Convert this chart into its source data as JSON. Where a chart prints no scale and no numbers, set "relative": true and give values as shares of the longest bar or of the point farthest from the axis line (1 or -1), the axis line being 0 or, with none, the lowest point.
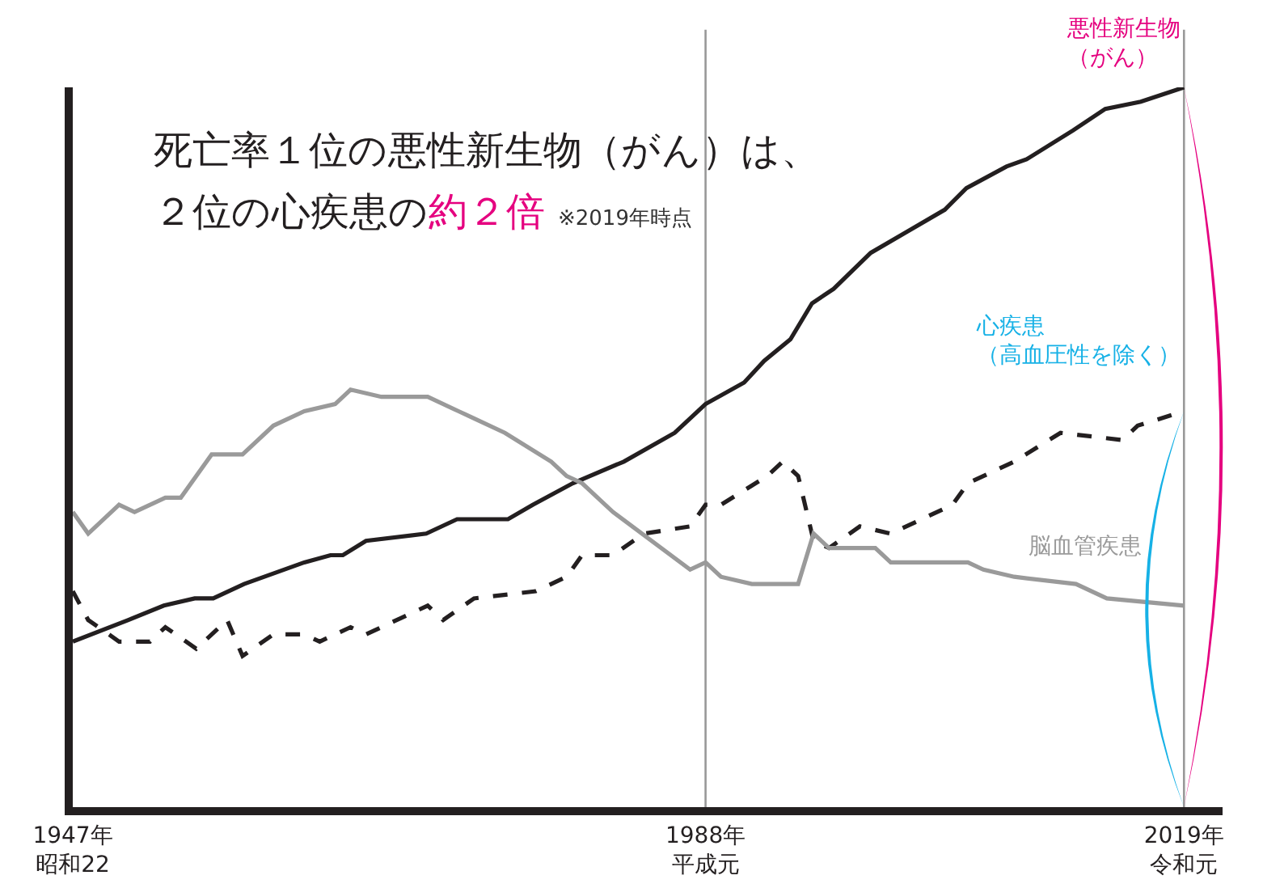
{
  "chart_data": {
    "type": "line",
    "title": "死亡率１位の悪性新生物（がん）は、",
    "subtitle": "２位の心疾患の",
    "annotations": [
      "約２倍",
      "※2019年時点"
    ],
    "relative": true,
    "tick_labels": "x",
    "legend": false,
    "grid": false,
    "marker": "none",
    "xlim": [
      1947,
      2021.5
    ],
    "xticks": [
      {
        "value": 1947,
        "label": "1947年昭和22"
      },
      {
        "value": 1988,
        "label": "1988年平成元"
      },
      {
        "value": 2019,
        "label": "2019年令和元"
      }
    ],
    "ref_lines": [
      {
        "axis": "x",
        "value": 1988,
        "color": "#999999"
      },
      {
        "axis": "x",
        "value": 2019,
        "color": "#999999"
      }
    ],
    "series": [
      {
        "name": "悪性新生物（がん）",
        "color": "#231f20",
        "line_style": "solid",
        "x": [
          1947,
          1950.6,
          1952.9,
          1954.9,
          1956.1,
          1958.1,
          1962,
          1963.7,
          1964.5,
          1966,
          1969.9,
          1971.9,
          1975.2,
          1976.8,
          1979.4,
          1982.7,
          1986,
          1988,
          1990.5,
          1991.8,
          1993.5,
          1994.9,
          1996.3,
          1998.7,
          2001.1,
          2003.5,
          2004.9,
          2007.5,
          2008.8,
          2011.8,
          2013.9,
          2016.2,
          2019
        ],
        "values": [
          0.23,
          0.26,
          0.28,
          0.29,
          0.29,
          0.31,
          0.34,
          0.35,
          0.35,
          0.37,
          0.38,
          0.4,
          0.4,
          0.42,
          0.45,
          0.48,
          0.52,
          0.56,
          0.59,
          0.62,
          0.65,
          0.7,
          0.72,
          0.77,
          0.8,
          0.83,
          0.86,
          0.89,
          0.9,
          0.94,
          0.97,
          0.98,
          1.0
        ]
      },
      {
        "name": "心疾患（高血圧性を除く）",
        "color": "#231f20",
        "line_style": "dashed",
        "x": [
          1947,
          1948,
          1950,
          1952,
          1953,
          1955,
          1957,
          1958,
          1960,
          1962,
          1963,
          1965,
          1966,
          1969,
          1970,
          1971,
          1973,
          1977,
          1979,
          1980,
          1982,
          1984,
          1987,
          1988,
          1989,
          1992,
          1993,
          1994,
          1995,
          1996,
          1998,
          2000,
          2004,
          2005,
          2006,
          2008,
          2011,
          2015,
          2016,
          2019
        ],
        "values": [
          0.3,
          0.26,
          0.23,
          0.23,
          0.25,
          0.22,
          0.26,
          0.21,
          0.24,
          0.24,
          0.23,
          0.25,
          0.24,
          0.27,
          0.28,
          0.26,
          0.29,
          0.3,
          0.32,
          0.35,
          0.35,
          0.38,
          0.39,
          0.42,
          0.42,
          0.46,
          0.48,
          0.46,
          0.37,
          0.36,
          0.39,
          0.38,
          0.42,
          0.45,
          0.46,
          0.48,
          0.52,
          0.51,
          0.53,
          0.55
        ]
      },
      {
        "name": "脳血管疾患",
        "color": "#9a9a9a",
        "line_style": "solid",
        "x": [
          1947,
          1948,
          1950,
          1951,
          1953,
          1954,
          1956,
          1957,
          1958,
          1960,
          1962,
          1964,
          1965,
          1967,
          1970,
          1972,
          1973,
          1975,
          1978,
          1979,
          1980,
          1982,
          1987,
          1988,
          1989,
          1991,
          1994,
          1995,
          1996,
          1999,
          2000,
          2002,
          2005,
          2006,
          2008,
          2012,
          2014,
          2019
        ],
        "values": [
          0.41,
          0.38,
          0.42,
          0.41,
          0.43,
          0.43,
          0.49,
          0.49,
          0.49,
          0.53,
          0.55,
          0.56,
          0.58,
          0.57,
          0.57,
          0.55,
          0.54,
          0.52,
          0.48,
          0.46,
          0.45,
          0.41,
          0.33,
          0.34,
          0.32,
          0.31,
          0.31,
          0.38,
          0.36,
          0.36,
          0.34,
          0.34,
          0.34,
          0.33,
          0.32,
          0.31,
          0.29,
          0.28
        ]
      }
    ]
  }
}
